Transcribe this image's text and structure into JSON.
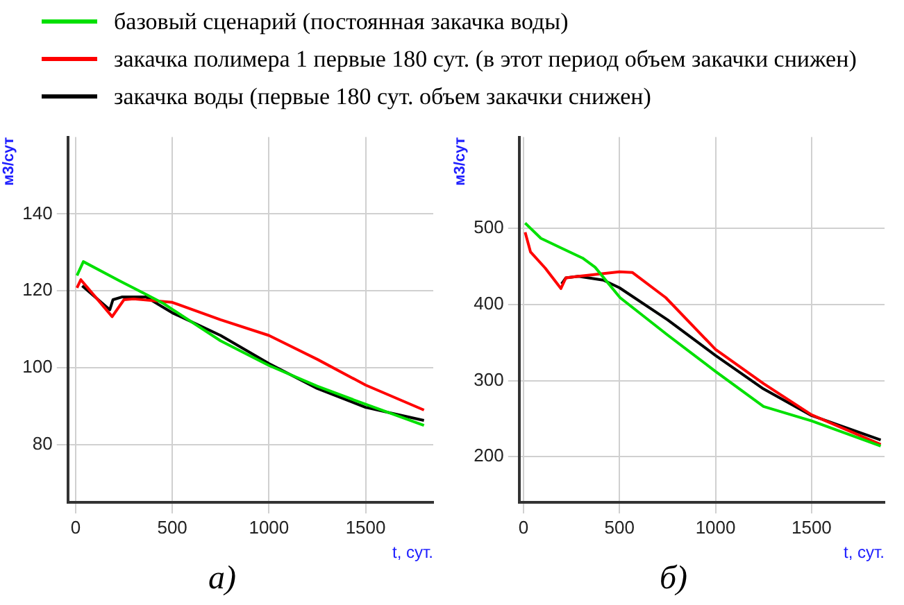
{
  "chart_data": [
    {
      "type": "line",
      "xlabel": "t, сут.",
      "ylabel": "м3/сут",
      "xlim": [
        -40,
        1850
      ],
      "ylim": [
        65,
        160
      ],
      "xticks": [
        0,
        500,
        1000,
        1500
      ],
      "yticks": [
        80,
        100,
        120,
        140
      ],
      "grid": true,
      "legend": "top",
      "marker": "none",
      "line_style": "solid",
      "annotations": [
        "а)"
      ],
      "series": [
        {
          "name": "базовый сценарий (постоянная закачка воды)",
          "color": "#00e000",
          "x": [
            7,
            40,
            227,
            364,
            455,
            500,
            750,
            1000,
            1250,
            1500,
            1802
          ],
          "values": [
            124,
            127.6,
            122.6,
            119.1,
            116.7,
            115.2,
            107,
            100.6,
            95.2,
            90.5,
            85
          ]
        },
        {
          "name": "закачка полимера 1 первые 180 сут. (в этот период объем закачки снижен)",
          "color": "#ff0000",
          "x": [
            7,
            27,
            189,
            250,
            300,
            500,
            750,
            1000,
            1250,
            1500,
            1802
          ],
          "values": [
            120.8,
            122.9,
            113.3,
            117.7,
            117.9,
            117,
            112.5,
            108.4,
            102.2,
            95.5,
            89
          ]
        },
        {
          "name": "закачка воды (первые 180 сут. объем закачки снижен)",
          "color": "#000000",
          "x": [
            34,
            177,
            193,
            239,
            364,
            500,
            750,
            1000,
            1250,
            1500,
            1802
          ],
          "values": [
            121.3,
            115.1,
            117.7,
            118.4,
            118.4,
            114.3,
            108.4,
            101.1,
            94.6,
            89.7,
            86.3
          ]
        }
      ]
    },
    {
      "type": "line",
      "xlabel": "t, сут.",
      "ylabel": "м3/сут",
      "xlim": [
        -22,
        1880
      ],
      "ylim": [
        140,
        620
      ],
      "xticks": [
        0,
        500,
        1000,
        1500
      ],
      "yticks": [
        200,
        300,
        400,
        500
      ],
      "grid": true,
      "marker": "none",
      "line_style": "solid",
      "annotations": [
        "б)"
      ],
      "series": [
        {
          "color": "#00e000",
          "x": [
            9,
            91,
            199,
            308,
            373,
            503,
            750,
            1000,
            1250,
            1500,
            1860
          ],
          "values": [
            507,
            487,
            474,
            461,
            449,
            409,
            360,
            312,
            266,
            247,
            214
          ]
        },
        {
          "color": "#ff0000",
          "x": [
            9,
            37,
            113,
            195,
            221,
            286,
            500,
            568,
            741,
            1000,
            1250,
            1500,
            1860
          ],
          "values": [
            495,
            469,
            448,
            421,
            435,
            437,
            443,
            442,
            409,
            341,
            296,
            255,
            216
          ]
        },
        {
          "color": "#000000",
          "x": [
            199,
            221,
            286,
            416,
            500,
            750,
            1000,
            1250,
            1500,
            1860
          ],
          "values": [
            427,
            435,
            437,
            432,
            422,
            380,
            333,
            289,
            254,
            222
          ]
        }
      ]
    }
  ]
}
